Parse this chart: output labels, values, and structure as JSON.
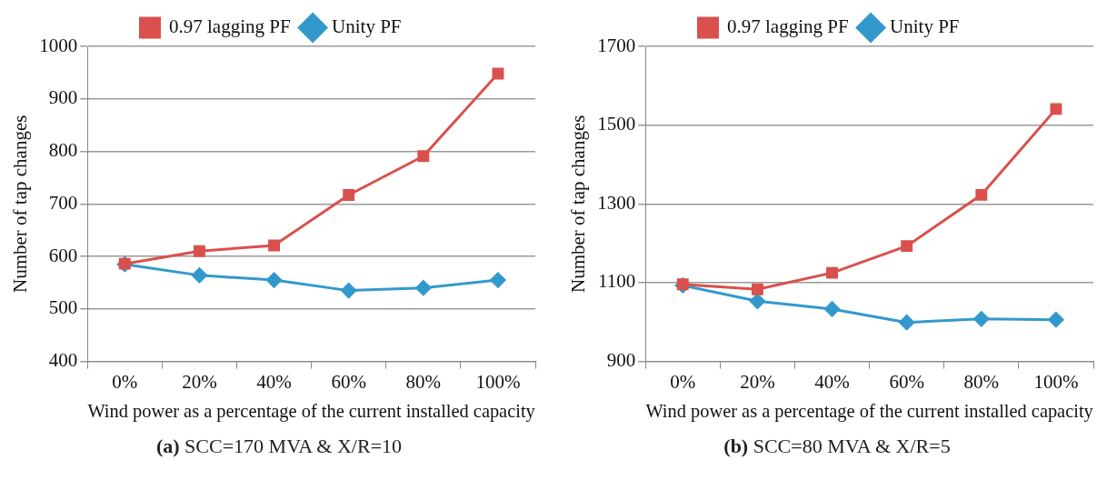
{
  "chart_data": [
    {
      "type": "line",
      "categories": [
        "0%",
        "20%",
        "40%",
        "60%",
        "80%",
        "100%"
      ],
      "xlabel": "Wind power as a percentage of the current installed capacity",
      "ylabel": "Number of tap changes",
      "ylim": [
        400,
        1000
      ],
      "yticks": [
        400,
        500,
        600,
        700,
        800,
        900,
        1000
      ],
      "grid": "y",
      "legend": "top",
      "annotations": [
        "(a) SCC=170 MVA & X/R=10"
      ],
      "series": [
        {
          "name": "Unity PF",
          "color": "#3399cc",
          "marker": "diamond",
          "values": [
            585,
            564,
            555,
            535,
            540,
            555
          ]
        },
        {
          "name": "0.97 lagging PF",
          "color": "#d9504c",
          "marker": "square",
          "values": [
            586,
            610,
            621,
            717,
            791,
            948
          ]
        }
      ]
    },
    {
      "type": "line",
      "categories": [
        "0%",
        "20%",
        "40%",
        "60%",
        "80%",
        "100%"
      ],
      "xlabel": "Wind power as a percentage of the current installed capacity",
      "ylabel": "Number of tap changes",
      "ylim": [
        900,
        1700
      ],
      "yticks": [
        900,
        1100,
        1300,
        1500,
        1700
      ],
      "grid": "y",
      "legend": "top",
      "annotations": [
        "(b) SCC=80 MVA & X/R=5"
      ],
      "series": [
        {
          "name": "Unity PF",
          "color": "#3399cc",
          "marker": "diamond",
          "values": [
            1093,
            1053,
            1033,
            999,
            1008,
            1006
          ]
        },
        {
          "name": "0.97 lagging PF",
          "color": "#d9504c",
          "marker": "square",
          "values": [
            1096,
            1083,
            1125,
            1193,
            1323,
            1541
          ]
        }
      ]
    }
  ]
}
